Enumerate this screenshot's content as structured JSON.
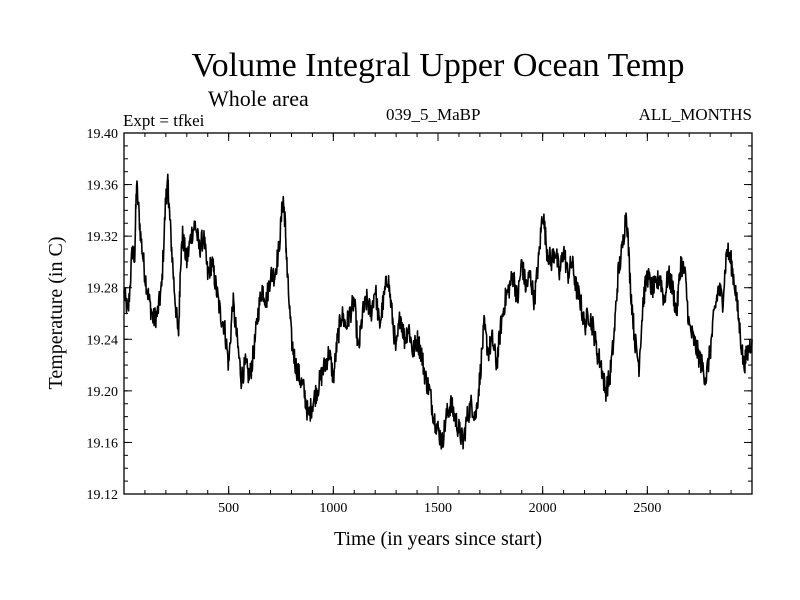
{
  "chart_data": {
    "type": "line",
    "title": "Volume Integral Upper Ocean Temp",
    "subtitle": "Whole area",
    "experiment": "Expt = tfkei",
    "run_id": "039_5_MaBP",
    "period": "ALL_MONTHS",
    "xlabel": "Time (in years since start)",
    "ylabel": "Temperature (in C)",
    "xlim": [
      0,
      3000
    ],
    "ylim": [
      19.12,
      19.4
    ],
    "x_ticks": [
      500,
      1000,
      1500,
      2000,
      2500
    ],
    "x_tick_labels": [
      "500",
      "1000",
      "1500",
      "2000",
      "2500"
    ],
    "y_ticks": [
      19.12,
      19.16,
      19.2,
      19.24,
      19.28,
      19.32,
      19.36,
      19.4
    ],
    "y_tick_labels": [
      "19.12",
      "19.16",
      "19.20",
      "19.24",
      "19.28",
      "19.32",
      "19.36",
      "19.40"
    ],
    "grid": false,
    "line_color": "#000000",
    "series": [
      {
        "x": [
          0,
          20,
          40,
          50,
          60,
          80,
          100,
          120,
          140,
          160,
          180,
          200,
          210,
          220,
          240,
          260,
          270,
          280,
          300,
          320,
          340,
          360,
          380,
          400,
          420,
          440,
          460,
          480,
          500,
          520,
          540,
          560,
          580,
          600,
          620,
          640,
          660,
          680,
          700,
          720,
          740,
          760,
          770,
          780,
          800,
          820,
          840,
          860,
          880,
          900,
          920,
          940,
          960,
          980,
          1000,
          1020,
          1040,
          1060,
          1080,
          1100,
          1120,
          1140,
          1160,
          1180,
          1200,
          1220,
          1240,
          1260,
          1280,
          1300,
          1320,
          1340,
          1360,
          1380,
          1400,
          1420,
          1440,
          1460,
          1480,
          1500,
          1520,
          1540,
          1560,
          1580,
          1600,
          1620,
          1640,
          1660,
          1680,
          1700,
          1720,
          1740,
          1760,
          1780,
          1800,
          1820,
          1840,
          1860,
          1880,
          1900,
          1920,
          1940,
          1960,
          1980,
          2000,
          2020,
          2040,
          2060,
          2080,
          2100,
          2120,
          2140,
          2160,
          2180,
          2200,
          2220,
          2240,
          2260,
          2280,
          2300,
          2320,
          2340,
          2360,
          2380,
          2400,
          2420,
          2440,
          2460,
          2480,
          2500,
          2520,
          2540,
          2560,
          2580,
          2600,
          2620,
          2640,
          2660,
          2680,
          2700,
          2720,
          2740,
          2760,
          2780,
          2800,
          2820,
          2840,
          2860,
          2880,
          2900,
          2920,
          2940,
          2960,
          2980,
          3000
        ],
        "y": [
          19.275,
          19.26,
          19.31,
          19.3,
          19.36,
          19.32,
          19.29,
          19.27,
          19.255,
          19.26,
          19.28,
          19.35,
          19.36,
          19.33,
          19.28,
          19.24,
          19.3,
          19.32,
          19.3,
          19.32,
          19.33,
          19.31,
          19.32,
          19.29,
          19.3,
          19.28,
          19.26,
          19.25,
          19.22,
          19.27,
          19.24,
          19.21,
          19.22,
          19.21,
          19.23,
          19.26,
          19.28,
          19.27,
          19.29,
          19.29,
          19.31,
          19.35,
          19.33,
          19.29,
          19.24,
          19.22,
          19.21,
          19.2,
          19.18,
          19.19,
          19.2,
          19.21,
          19.22,
          19.23,
          19.21,
          19.24,
          19.26,
          19.25,
          19.26,
          19.27,
          19.23,
          19.26,
          19.27,
          19.26,
          19.28,
          19.25,
          19.27,
          19.29,
          19.26,
          19.23,
          19.26,
          19.24,
          19.25,
          19.23,
          19.24,
          19.23,
          19.21,
          19.2,
          19.18,
          19.17,
          19.16,
          19.18,
          19.19,
          19.18,
          19.17,
          19.16,
          19.18,
          19.19,
          19.18,
          19.21,
          19.25,
          19.23,
          19.24,
          19.22,
          19.25,
          19.27,
          19.28,
          19.29,
          19.27,
          19.3,
          19.28,
          19.29,
          19.27,
          19.3,
          19.34,
          19.31,
          19.3,
          19.31,
          19.29,
          19.31,
          19.29,
          19.3,
          19.28,
          19.27,
          19.25,
          19.26,
          19.25,
          19.23,
          19.22,
          19.2,
          19.21,
          19.24,
          19.29,
          19.31,
          19.34,
          19.28,
          19.24,
          19.22,
          19.27,
          19.29,
          19.28,
          19.28,
          19.29,
          19.27,
          19.29,
          19.28,
          19.26,
          19.3,
          19.29,
          19.25,
          19.24,
          19.23,
          19.22,
          19.21,
          19.23,
          19.26,
          19.28,
          19.27,
          19.31,
          19.3,
          19.28,
          19.25,
          19.22,
          19.23,
          19.24
        ]
      }
    ]
  }
}
